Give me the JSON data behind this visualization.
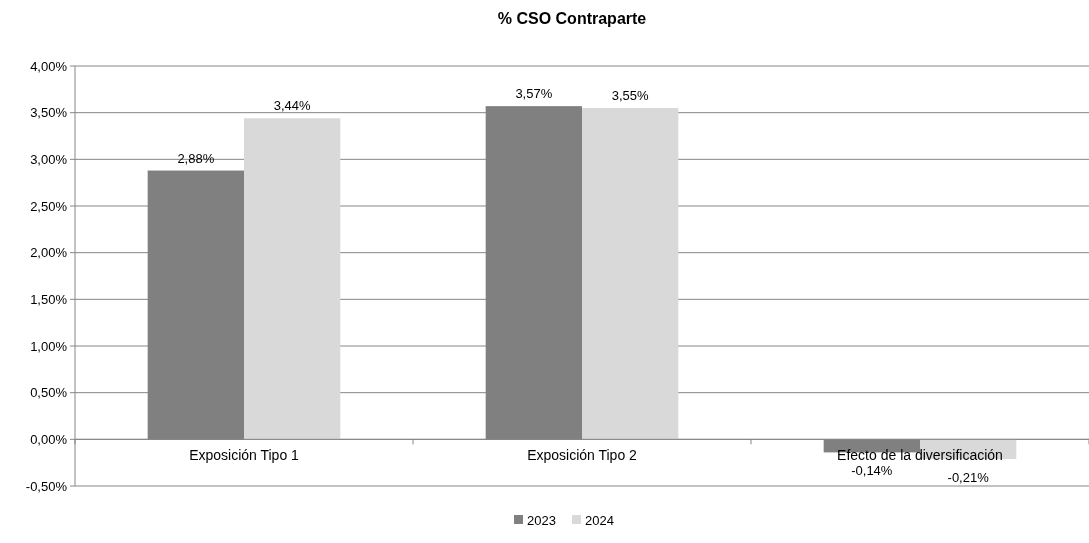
{
  "chart_data": {
    "type": "bar",
    "title": "% CSO Contraparte",
    "categories": [
      "Exposición Tipo 1",
      "Exposición Tipo 2",
      "Efecto de la diversificación"
    ],
    "series": [
      {
        "name": "2023",
        "color": "#808080",
        "values": [
          2.88,
          3.57,
          -0.14
        ],
        "value_labels": [
          "2,88%",
          "3,57%",
          "-0,14%"
        ]
      },
      {
        "name": "2024",
        "color": "#d9d9d9",
        "values": [
          3.44,
          3.55,
          -0.21
        ],
        "value_labels": [
          "3,44%",
          "3,55%",
          "-0,21%"
        ]
      }
    ],
    "ylim": [
      -0.5,
      4
    ],
    "yticks": [
      {
        "value": -0.5,
        "label": "-0,50%"
      },
      {
        "value": 0,
        "label": "0,00%"
      },
      {
        "value": 0.5,
        "label": "0,50%"
      },
      {
        "value": 1,
        "label": "1,00%"
      },
      {
        "value": 1.5,
        "label": "1,50%"
      },
      {
        "value": 2,
        "label": "2,00%"
      },
      {
        "value": 2.5,
        "label": "2,50%"
      },
      {
        "value": 3,
        "label": "3,00%"
      },
      {
        "value": 3.5,
        "label": "3,50%"
      },
      {
        "value": 4,
        "label": "4,00%"
      }
    ],
    "grid": "y",
    "legend": "bottom"
  }
}
